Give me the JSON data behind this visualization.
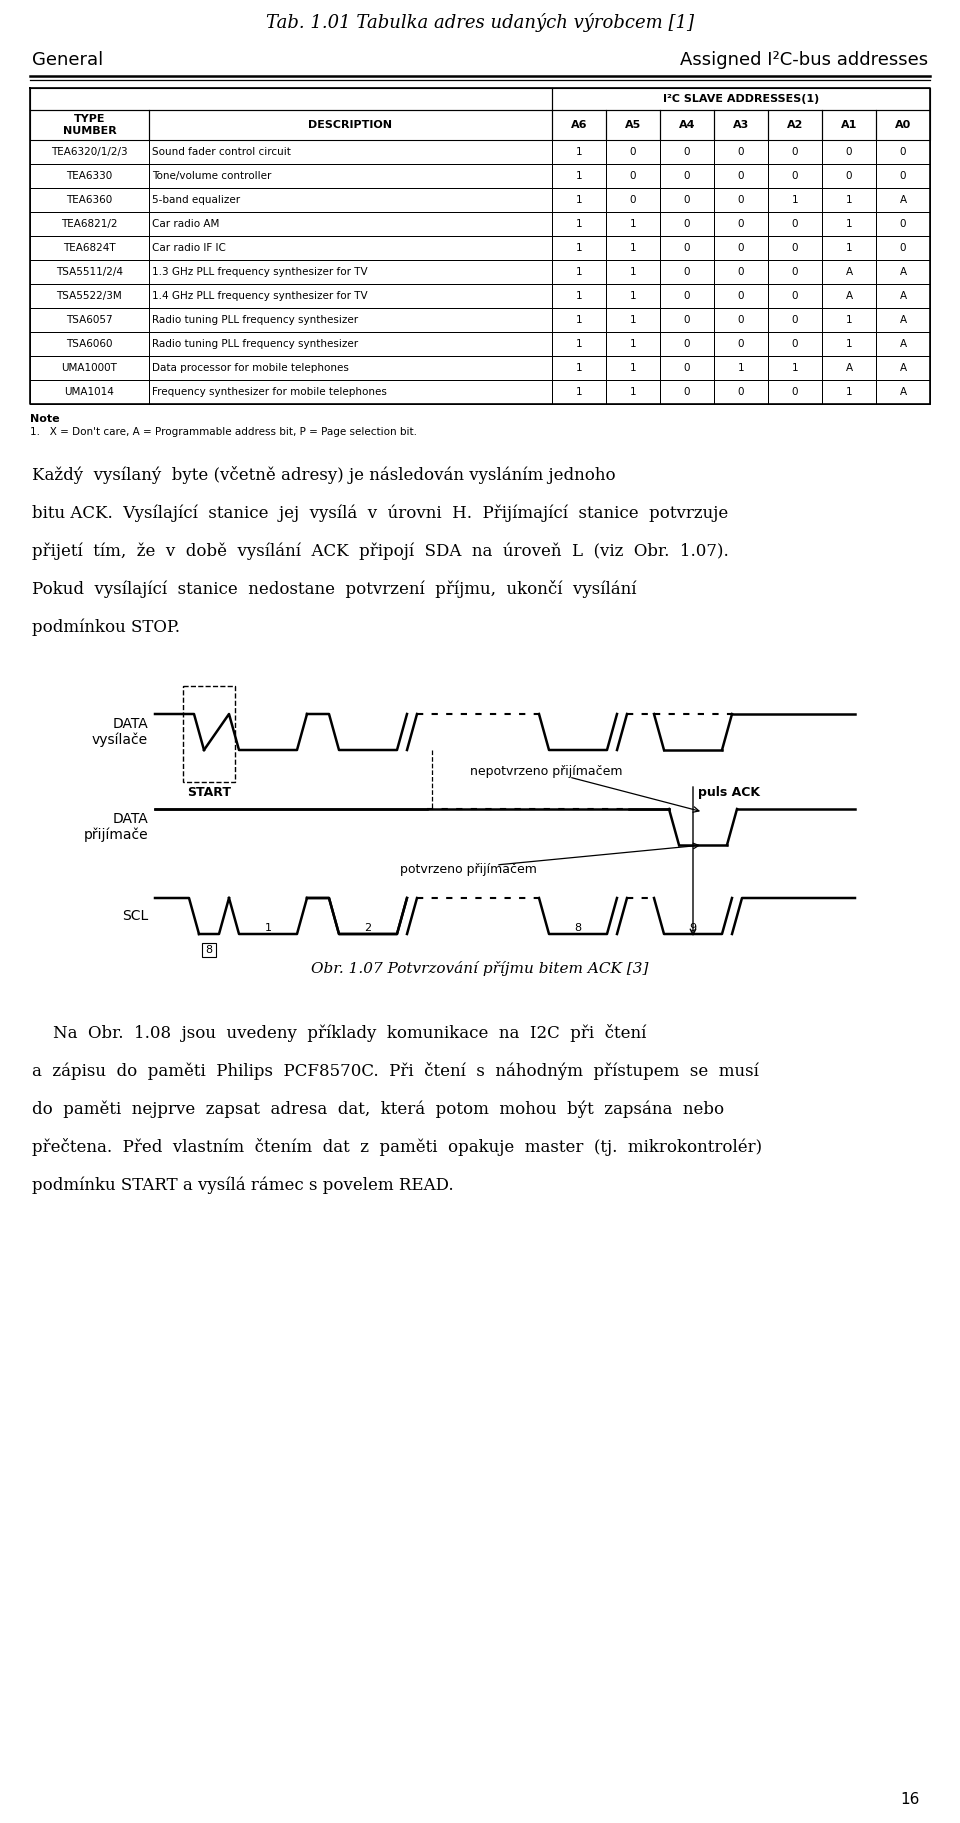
{
  "title": "Tab. 1.01 Tabulka adres udaných výrobcem [1]",
  "subtitle_left": "General",
  "subtitle_right": "Assigned I²C-bus addresses",
  "i2c_header": "I²C SLAVE ADDRESSES(1)",
  "table_headers_col0": "TYPE\nNUMBER",
  "table_headers_col1": "DESCRIPTION",
  "table_headers_addr": [
    "A6",
    "A5",
    "A4",
    "A3",
    "A2",
    "A1",
    "A0"
  ],
  "table_rows": [
    [
      "TEA6320/1/2/3",
      "Sound fader control circuit",
      "1",
      "0",
      "0",
      "0",
      "0",
      "0",
      "0"
    ],
    [
      "TEA6330",
      "Tone/volume controller",
      "1",
      "0",
      "0",
      "0",
      "0",
      "0",
      "0"
    ],
    [
      "TEA6360",
      "5-band equalizer",
      "1",
      "0",
      "0",
      "0",
      "1",
      "1",
      "A"
    ],
    [
      "TEA6821/2",
      "Car radio AM",
      "1",
      "1",
      "0",
      "0",
      "0",
      "1",
      "0"
    ],
    [
      "TEA6824T",
      "Car radio IF IC",
      "1",
      "1",
      "0",
      "0",
      "0",
      "1",
      "0"
    ],
    [
      "TSA5511/2/4",
      "1.3 GHz PLL frequency synthesizer for TV",
      "1",
      "1",
      "0",
      "0",
      "0",
      "A",
      "A"
    ],
    [
      "TSA5522/3M",
      "1.4 GHz PLL frequency synthesizer for TV",
      "1",
      "1",
      "0",
      "0",
      "0",
      "A",
      "A"
    ],
    [
      "TSA6057",
      "Radio tuning PLL frequency synthesizer",
      "1",
      "1",
      "0",
      "0",
      "0",
      "1",
      "A"
    ],
    [
      "TSA6060",
      "Radio tuning PLL frequency synthesizer",
      "1",
      "1",
      "0",
      "0",
      "0",
      "1",
      "A"
    ],
    [
      "UMA1000T",
      "Data processor for mobile telephones",
      "1",
      "1",
      "0",
      "1",
      "1",
      "A",
      "A"
    ],
    [
      "UMA1014",
      "Frequency synthesizer for mobile telephones",
      "1",
      "1",
      "0",
      "0",
      "0",
      "1",
      "A"
    ]
  ],
  "note_bold": "Note",
  "note_text": "1.   X = Don't care, A = Programmable address bit, P = Page selection bit.",
  "para1_lines": [
    "Každý  vysílaný  byte (včetně adresy) je následován vysláním jednoho",
    "bitu ACK.  Vysílající  stanice  jej  vysílá  v  úrovni  H.  Přijímající  stanice  potvrzuje",
    "přijetí  tím,  že  v  době  vysílání  ACK  připojí  SDA  na  úroveň  L  (viz  Obr.  1.07).",
    "Pokud  vysílající  stanice  nedostane  potvrzení  příjmu,  ukončí  vysílání",
    "podmínkou STOP."
  ],
  "label_data_tx": "DATA\nvysílače",
  "label_data_rx": "DATA\npřijímače",
  "label_scl": "SCL",
  "ann_not_confirmed": "nepotvrzeno přijímačem",
  "ann_confirmed": "potvrzeno přijímačem",
  "label_start": "START",
  "label_puls_ack": "puls ACK",
  "diagram_caption": "Obr. 1.07 Potvrzování příjmu bitem ACK [3]",
  "para2_lines": [
    "    Na  Obr.  1.08  jsou  uvedeny  příklady  komunikace  na  I2C  při  čtení",
    "a  zápisu  do  paměti  Philips  PCF8570C.  Při  čtení  s  náhodným  přístupem  se  musí",
    "do  paměti  nejprve  zapsat  adresa  dat,  která  potom  mohou  být  zapsána  nebo",
    "přečtena.  Před  vlastním  čtením  dat  z  paměti  opakuje  master  (tj.  mikrokontrolér)",
    "podmínku START a vysílá rámec s povelem READ."
  ],
  "page_number": "16",
  "bg_color": "#ffffff",
  "text_color": "#000000"
}
